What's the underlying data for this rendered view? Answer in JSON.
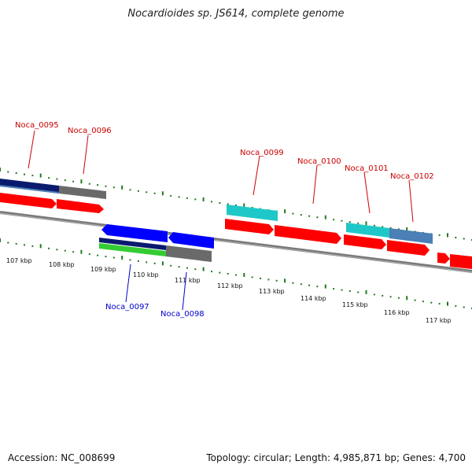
{
  "title": "Nocardioides sp. JS614, complete genome",
  "footer": {
    "accession": "Accession: NC_008699",
    "summary": "Topology: circular; Length: 4,985,871 bp; Genes: 4,700"
  },
  "scale": [
    "107 kbp",
    "108 kbp",
    "109 kbp",
    "110 kbp",
    "111 kbp",
    "112 kbp",
    "113 kbp",
    "114 kbp",
    "115 kbp",
    "116 kbp",
    "117 kbp"
  ],
  "genes_forward": [
    "Noca_0095",
    "Noca_0096",
    "Noca_0099",
    "Noca_0100",
    "Noca_0101",
    "Noca_0102"
  ],
  "genes_reverse": [
    "Noca_0097",
    "Noca_0098"
  ],
  "colors": {
    "forward_label": "#cc0000",
    "reverse_label": "#0000cc",
    "cds_forward": "#ff0000",
    "cds_reverse": "#0000ff",
    "backbone": "#777777",
    "ticks": "#1f7a1f",
    "navy": "#0a1a6e",
    "steel": "#4b7fb5",
    "cyan": "#1fc8c8",
    "green": "#33cc33",
    "gray": "#6a6a6a"
  }
}
